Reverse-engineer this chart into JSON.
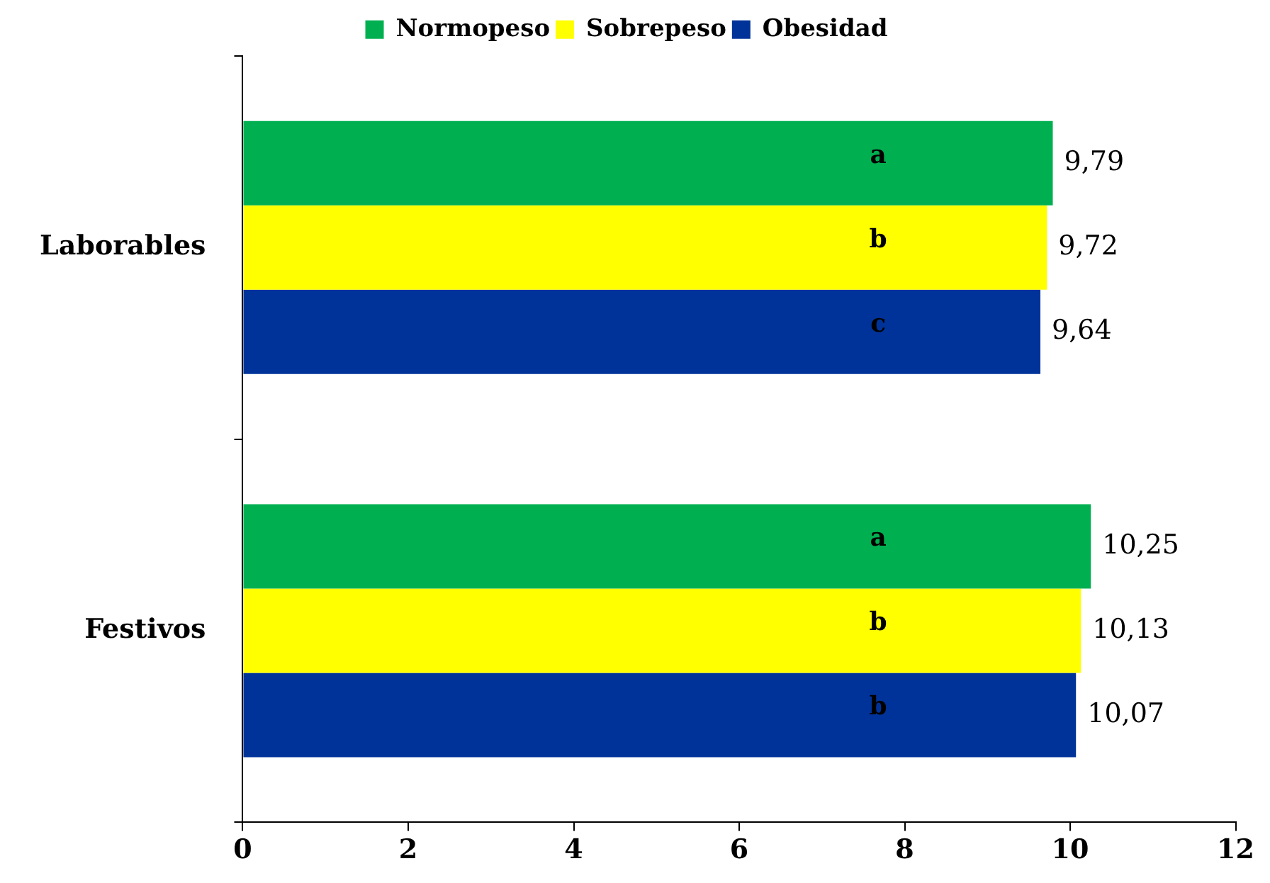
{
  "chart_data": {
    "type": "bar",
    "orientation": "horizontal",
    "categories": [
      "Laborables",
      "Festivos"
    ],
    "series": [
      {
        "name": "Normopeso",
        "color": "#00b050",
        "values": [
          9.79,
          10.25
        ],
        "value_labels": [
          "9,79",
          "10,25"
        ]
      },
      {
        "name": "Sobrepeso",
        "color": "#ffff00",
        "values": [
          9.72,
          10.13
        ],
        "value_labels": [
          "9,72",
          "10,13"
        ]
      },
      {
        "name": "Obesidad",
        "color": "#003399",
        "values": [
          9.64,
          10.07
        ],
        "value_labels": [
          "9,64",
          "10,07"
        ]
      }
    ],
    "xlim": [
      0,
      12
    ],
    "xticks": [
      0,
      2,
      4,
      6,
      8,
      10,
      12
    ],
    "grid": false,
    "legend": "top",
    "annotations": [
      "a",
      "b",
      "c",
      "a",
      "b",
      "b"
    ]
  }
}
